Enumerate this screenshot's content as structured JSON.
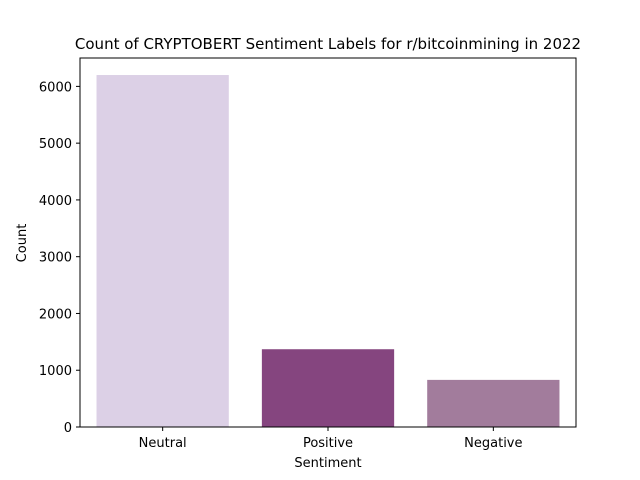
{
  "chart_data": {
    "type": "bar",
    "title": "Count of CRYPTOBERT Sentiment Labels for r/bitcoinmining in 2022",
    "xlabel": "Sentiment",
    "ylabel": "Count",
    "categories": [
      "Neutral",
      "Positive",
      "Negative"
    ],
    "values": [
      6200,
      1370,
      830
    ],
    "colors": [
      "#dcd0e6",
      "#85457f",
      "#a27c9c"
    ],
    "ylim": [
      0,
      6500
    ],
    "yticks": [
      0,
      1000,
      2000,
      3000,
      4000,
      5000,
      6000
    ],
    "grid": false,
    "legend": "none"
  }
}
